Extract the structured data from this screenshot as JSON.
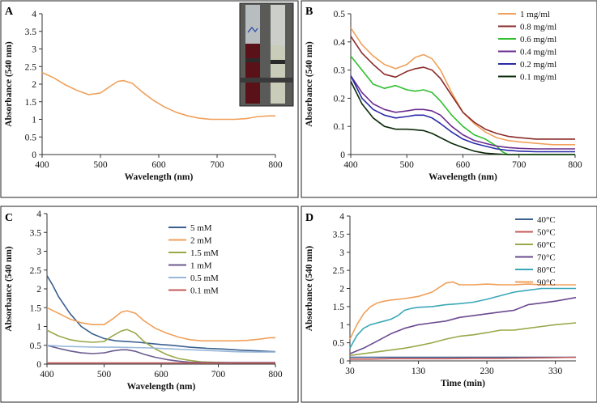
{
  "chart_data": [
    {
      "panel": "A",
      "type": "line",
      "xlabel": "Wavelength (nm)",
      "ylabel": "Absorbance (540 nm)",
      "xlim": [
        400,
        800
      ],
      "ylim": [
        0,
        4
      ],
      "xticks": [
        "400",
        "500",
        "600",
        "700",
        "800"
      ],
      "yticks": [
        "0",
        "0.5",
        "1",
        "1.5",
        "2",
        "2.5",
        "3",
        "3.5",
        "4"
      ],
      "inset": "photo-of-vials",
      "series": [
        {
          "name": "",
          "color": "#f0a05a",
          "x": [
            400,
            420,
            440,
            460,
            480,
            500,
            515,
            530,
            540,
            555,
            570,
            590,
            610,
            630,
            650,
            670,
            690,
            710,
            730,
            750,
            770,
            790,
            800
          ],
          "y": [
            2.33,
            2.18,
            1.98,
            1.82,
            1.7,
            1.75,
            1.92,
            2.08,
            2.1,
            2.02,
            1.8,
            1.55,
            1.35,
            1.2,
            1.1,
            1.03,
            1.0,
            1.0,
            1.0,
            1.02,
            1.08,
            1.1,
            1.1
          ]
        }
      ]
    },
    {
      "panel": "B",
      "type": "line",
      "xlabel": "Wavelength (nm)",
      "ylabel": "Absorbance (540 nm)",
      "xlim": [
        400,
        800
      ],
      "ylim": [
        0,
        0.5
      ],
      "xticks": [
        "400",
        "500",
        "600",
        "700",
        "800"
      ],
      "yticks": [
        "0",
        "0.1",
        "0.2",
        "0.3",
        "0.4",
        "0.5"
      ],
      "series": [
        {
          "name": "1 mg/ml",
          "color": "#f0a05a",
          "x": [
            400,
            420,
            440,
            460,
            480,
            500,
            515,
            530,
            545,
            560,
            580,
            600,
            620,
            640,
            660,
            680,
            700,
            730,
            760,
            800
          ],
          "y": [
            0.45,
            0.39,
            0.35,
            0.32,
            0.305,
            0.32,
            0.345,
            0.355,
            0.34,
            0.3,
            0.22,
            0.15,
            0.11,
            0.08,
            0.06,
            0.05,
            0.045,
            0.04,
            0.035,
            0.035
          ]
        },
        {
          "name": "0.8 mg/ml",
          "color": "#8b2a2a",
          "x": [
            400,
            420,
            440,
            460,
            480,
            500,
            515,
            530,
            545,
            560,
            580,
            600,
            620,
            640,
            660,
            680,
            700,
            730,
            760,
            800
          ],
          "y": [
            0.42,
            0.36,
            0.32,
            0.285,
            0.275,
            0.295,
            0.305,
            0.31,
            0.3,
            0.27,
            0.21,
            0.15,
            0.115,
            0.09,
            0.075,
            0.065,
            0.06,
            0.055,
            0.055,
            0.055
          ]
        },
        {
          "name": "0.6 mg/ml",
          "color": "#2fbf2f",
          "x": [
            400,
            420,
            440,
            460,
            480,
            500,
            515,
            530,
            545,
            560,
            580,
            600,
            620,
            640,
            660,
            670,
            680,
            700,
            800
          ],
          "y": [
            0.35,
            0.3,
            0.25,
            0.235,
            0.245,
            0.23,
            0.225,
            0.23,
            0.22,
            0.19,
            0.14,
            0.1,
            0.07,
            0.055,
            0.03,
            0.01,
            0.0,
            0.0,
            0.0
          ]
        },
        {
          "name": "0.4 mg/ml",
          "color": "#6a2d8f",
          "x": [
            400,
            420,
            440,
            460,
            480,
            500,
            515,
            530,
            545,
            560,
            580,
            600,
            620,
            640,
            660,
            680,
            700,
            730,
            760,
            800
          ],
          "y": [
            0.28,
            0.22,
            0.18,
            0.16,
            0.15,
            0.155,
            0.16,
            0.16,
            0.155,
            0.14,
            0.1,
            0.07,
            0.05,
            0.04,
            0.03,
            0.025,
            0.022,
            0.02,
            0.02,
            0.02
          ]
        },
        {
          "name": "0.2 mg/ml",
          "color": "#2a2aa8",
          "x": [
            400,
            420,
            440,
            460,
            480,
            500,
            515,
            530,
            545,
            560,
            580,
            600,
            620,
            640,
            660,
            680,
            700,
            730,
            760,
            800
          ],
          "y": [
            0.28,
            0.2,
            0.16,
            0.14,
            0.13,
            0.135,
            0.14,
            0.14,
            0.13,
            0.11,
            0.08,
            0.055,
            0.04,
            0.03,
            0.02,
            0.015,
            0.012,
            0.01,
            0.01,
            0.01
          ]
        },
        {
          "name": "0.1 mg/ml",
          "color": "#0a2a0a",
          "x": [
            400,
            420,
            440,
            460,
            480,
            500,
            515,
            530,
            545,
            560,
            580,
            600,
            620,
            640,
            660,
            680,
            700,
            800
          ],
          "y": [
            0.26,
            0.18,
            0.13,
            0.1,
            0.09,
            0.09,
            0.088,
            0.085,
            0.075,
            0.06,
            0.04,
            0.025,
            0.012,
            0.005,
            0.002,
            0.0,
            0.0,
            0.0
          ]
        }
      ]
    },
    {
      "panel": "C",
      "type": "line",
      "xlabel": "Wavelength (nm)",
      "ylabel": "Absorbance (540 nm)",
      "xlim": [
        400,
        800
      ],
      "ylim": [
        0,
        4
      ],
      "xticks": [
        "400",
        "500",
        "600",
        "700",
        "800"
      ],
      "yticks": [
        "0",
        "0.5",
        "1",
        "1.5",
        "2",
        "2.5",
        "3",
        "3.5",
        "4"
      ],
      "series": [
        {
          "name": "5 mM",
          "color": "#3a5f8f",
          "x": [
            400,
            410,
            420,
            440,
            460,
            480,
            500,
            520,
            540,
            560,
            580,
            600,
            620,
            650,
            680,
            710,
            740,
            770,
            800
          ],
          "y": [
            2.35,
            2.1,
            1.8,
            1.35,
            1.0,
            0.8,
            0.68,
            0.62,
            0.6,
            0.58,
            0.55,
            0.52,
            0.5,
            0.45,
            0.42,
            0.4,
            0.37,
            0.35,
            0.33
          ]
        },
        {
          "name": "2 mM",
          "color": "#f0a05a",
          "x": [
            400,
            420,
            440,
            460,
            480,
            500,
            515,
            530,
            540,
            555,
            570,
            590,
            610,
            630,
            650,
            670,
            690,
            710,
            730,
            750,
            770,
            790,
            800
          ],
          "y": [
            1.5,
            1.35,
            1.2,
            1.1,
            1.05,
            1.05,
            1.2,
            1.38,
            1.42,
            1.35,
            1.15,
            0.95,
            0.82,
            0.72,
            0.65,
            0.62,
            0.62,
            0.62,
            0.62,
            0.63,
            0.66,
            0.7,
            0.7
          ]
        },
        {
          "name": "1.5 mM",
          "color": "#9aa84a",
          "x": [
            400,
            420,
            440,
            460,
            480,
            500,
            515,
            530,
            540,
            555,
            570,
            590,
            610,
            630,
            650,
            670,
            690,
            710,
            730,
            760,
            800
          ],
          "y": [
            0.9,
            0.75,
            0.65,
            0.6,
            0.58,
            0.6,
            0.75,
            0.88,
            0.92,
            0.82,
            0.6,
            0.4,
            0.25,
            0.15,
            0.1,
            0.06,
            0.05,
            0.04,
            0.03,
            0.03,
            0.03
          ]
        },
        {
          "name": "1 mM",
          "color": "#6b5a8f",
          "x": [
            400,
            420,
            440,
            460,
            480,
            500,
            515,
            530,
            540,
            555,
            570,
            590,
            610,
            630,
            650,
            680,
            710,
            740,
            770,
            800
          ],
          "y": [
            0.5,
            0.42,
            0.35,
            0.3,
            0.28,
            0.3,
            0.35,
            0.38,
            0.38,
            0.34,
            0.26,
            0.18,
            0.12,
            0.08,
            0.05,
            0.04,
            0.04,
            0.04,
            0.04,
            0.04
          ]
        },
        {
          "name": "0.5 mM",
          "color": "#9ab8d8",
          "x": [
            400,
            430,
            460,
            490,
            520,
            550,
            580,
            610,
            640,
            670,
            700,
            730,
            760,
            800
          ],
          "y": [
            0.5,
            0.47,
            0.46,
            0.45,
            0.45,
            0.44,
            0.43,
            0.41,
            0.39,
            0.37,
            0.35,
            0.33,
            0.32,
            0.32
          ]
        },
        {
          "name": "0.1 mM",
          "color": "#c45a5a",
          "x": [
            400,
            500,
            600,
            700,
            800
          ],
          "y": [
            0.03,
            0.03,
            0.03,
            0.03,
            0.03
          ]
        }
      ]
    },
    {
      "panel": "D",
      "type": "line",
      "xlabel": "Time (min)",
      "ylabel": "Absorbance (540 nm)",
      "xlim": [
        30,
        360
      ],
      "ylim": [
        0,
        4
      ],
      "xticks": [
        "30",
        "130",
        "230",
        "330"
      ],
      "xtick_values": [
        30,
        130,
        230,
        330
      ],
      "yticks": [
        "0",
        "0.5",
        "1",
        "1.5",
        "2",
        "2.5",
        "3",
        "3.5",
        "4"
      ],
      "series": [
        {
          "name": "40°C",
          "color": "#3a5f8f",
          "x": [
            30,
            60,
            90,
            130,
            170,
            210,
            250,
            290,
            330,
            360
          ],
          "y": [
            0.1,
            0.1,
            0.1,
            0.1,
            0.1,
            0.1,
            0.1,
            0.1,
            0.1,
            0.1
          ]
        },
        {
          "name": "50°C",
          "color": "#c45a5a",
          "x": [
            30,
            60,
            90,
            130,
            170,
            210,
            250,
            290,
            330,
            360
          ],
          "y": [
            0.05,
            0.05,
            0.06,
            0.06,
            0.06,
            0.07,
            0.07,
            0.08,
            0.09,
            0.1
          ]
        },
        {
          "name": "60°C",
          "color": "#9aa84a",
          "x": [
            30,
            50,
            70,
            90,
            110,
            130,
            150,
            170,
            190,
            210,
            230,
            250,
            270,
            290,
            310,
            330,
            360
          ],
          "y": [
            0.15,
            0.2,
            0.25,
            0.3,
            0.35,
            0.42,
            0.5,
            0.6,
            0.68,
            0.72,
            0.78,
            0.85,
            0.85,
            0.9,
            0.95,
            1.0,
            1.05
          ]
        },
        {
          "name": "70°C",
          "color": "#6b4a8f",
          "x": [
            30,
            50,
            70,
            90,
            110,
            130,
            150,
            170,
            190,
            210,
            230,
            250,
            270,
            290,
            310,
            330,
            360
          ],
          "y": [
            0.2,
            0.35,
            0.55,
            0.75,
            0.9,
            1.0,
            1.05,
            1.1,
            1.2,
            1.25,
            1.3,
            1.35,
            1.4,
            1.55,
            1.6,
            1.65,
            1.75
          ]
        },
        {
          "name": "80°C",
          "color": "#3aa8b8",
          "x": [
            30,
            40,
            50,
            60,
            70,
            80,
            90,
            100,
            110,
            120,
            130,
            150,
            170,
            190,
            210,
            230,
            250,
            270,
            290,
            310,
            330,
            360
          ],
          "y": [
            0.35,
            0.7,
            0.9,
            1.0,
            1.05,
            1.1,
            1.15,
            1.25,
            1.4,
            1.45,
            1.48,
            1.5,
            1.55,
            1.58,
            1.62,
            1.7,
            1.8,
            1.9,
            1.95,
            2.0,
            2.0,
            2.0
          ]
        },
        {
          "name": "90°C",
          "color": "#f0a05a",
          "x": [
            30,
            40,
            50,
            60,
            70,
            80,
            90,
            100,
            110,
            120,
            130,
            150,
            170,
            180,
            190,
            210,
            230,
            250,
            270,
            290,
            310,
            330,
            360
          ],
          "y": [
            0.6,
            1.0,
            1.3,
            1.5,
            1.6,
            1.65,
            1.68,
            1.7,
            1.72,
            1.75,
            1.78,
            1.9,
            2.15,
            2.18,
            2.1,
            2.1,
            2.12,
            2.1,
            2.1,
            2.12,
            2.1,
            2.1,
            2.1
          ]
        }
      ]
    }
  ]
}
